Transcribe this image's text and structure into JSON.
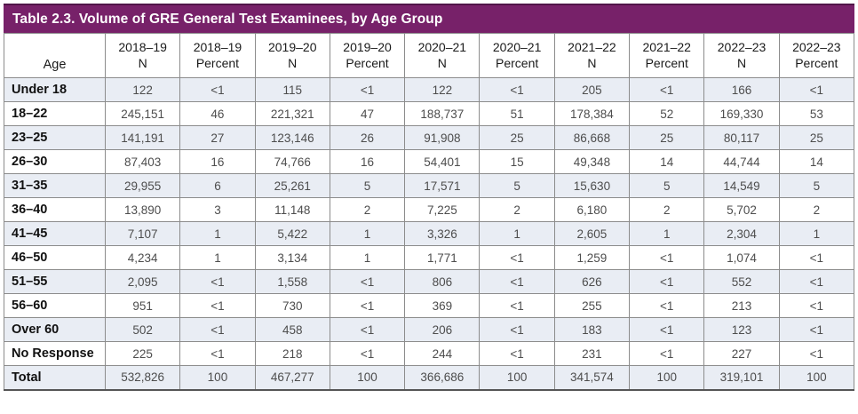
{
  "title": "Table 2.3. Volume of GRE General Test Examinees, by Age Group",
  "colors": {
    "title_bar_background": "#772169",
    "title_bar_top_edge": "#511549",
    "row_stripe": "#e9edf4",
    "cell_border": "#8c8c8c",
    "value_text": "#4d4d4d",
    "title_text": "#ffffff"
  },
  "table": {
    "age_header": "Age",
    "year_headers": [
      {
        "year": "2018–19",
        "measure": "N"
      },
      {
        "year": "2018–19",
        "measure": "Percent"
      },
      {
        "year": "2019–20",
        "measure": "N"
      },
      {
        "year": "2019–20",
        "measure": "Percent"
      },
      {
        "year": "2020–21",
        "measure": "N"
      },
      {
        "year": "2020–21",
        "measure": "Percent"
      },
      {
        "year": "2021–22",
        "measure": "N"
      },
      {
        "year": "2021–22",
        "measure": "Percent"
      },
      {
        "year": "2022–23",
        "measure": "N"
      },
      {
        "year": "2022–23",
        "measure": "Percent"
      }
    ],
    "rows": [
      {
        "age": "Under 18",
        "values": [
          "122",
          "<1",
          "115",
          "<1",
          "122",
          "<1",
          "205",
          "<1",
          "166",
          "<1"
        ]
      },
      {
        "age": "18–22",
        "values": [
          "245,151",
          "46",
          "221,321",
          "47",
          "188,737",
          "51",
          "178,384",
          "52",
          "169,330",
          "53"
        ]
      },
      {
        "age": "23–25",
        "values": [
          "141,191",
          "27",
          "123,146",
          "26",
          "91,908",
          "25",
          "86,668",
          "25",
          "80,117",
          "25"
        ]
      },
      {
        "age": "26–30",
        "values": [
          "87,403",
          "16",
          "74,766",
          "16",
          "54,401",
          "15",
          "49,348",
          "14",
          "44,744",
          "14"
        ]
      },
      {
        "age": "31–35",
        "values": [
          "29,955",
          "6",
          "25,261",
          "5",
          "17,571",
          "5",
          "15,630",
          "5",
          "14,549",
          "5"
        ]
      },
      {
        "age": "36–40",
        "values": [
          "13,890",
          "3",
          "11,148",
          "2",
          "7,225",
          "2",
          "6,180",
          "2",
          "5,702",
          "2"
        ]
      },
      {
        "age": "41–45",
        "values": [
          "7,107",
          "1",
          "5,422",
          "1",
          "3,326",
          "1",
          "2,605",
          "1",
          "2,304",
          "1"
        ]
      },
      {
        "age": "46–50",
        "values": [
          "4,234",
          "1",
          "3,134",
          "1",
          "1,771",
          "<1",
          "1,259",
          "<1",
          "1,074",
          "<1"
        ]
      },
      {
        "age": "51–55",
        "values": [
          "2,095",
          "<1",
          "1,558",
          "<1",
          "806",
          "<1",
          "626",
          "<1",
          "552",
          "<1"
        ]
      },
      {
        "age": "56–60",
        "values": [
          "951",
          "<1",
          "730",
          "<1",
          "369",
          "<1",
          "255",
          "<1",
          "213",
          "<1"
        ]
      },
      {
        "age": "Over 60",
        "values": [
          "502",
          "<1",
          "458",
          "<1",
          "206",
          "<1",
          "183",
          "<1",
          "123",
          "<1"
        ]
      },
      {
        "age": "No Response",
        "values": [
          "225",
          "<1",
          "218",
          "<1",
          "244",
          "<1",
          "231",
          "<1",
          "227",
          "<1"
        ]
      },
      {
        "age": "Total",
        "values": [
          "532,826",
          "100",
          "467,277",
          "100",
          "366,686",
          "100",
          "341,574",
          "100",
          "319,101",
          "100"
        ]
      }
    ]
  }
}
